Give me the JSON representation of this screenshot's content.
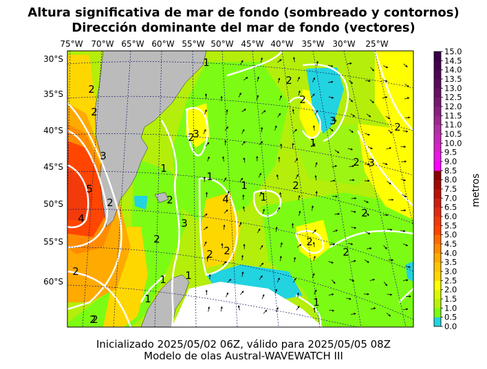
{
  "title_line1": "Altura significativa de mar de fondo (sombreado y contornos)",
  "title_line2": "Dirección dominante del mar de fondo (vectores)",
  "footer_line1": "Inicializado 2025/05/02 06Z, válido para 2025/05/05 08Z",
  "footer_line2": "Modelo de olas Austral-WAVEWATCH III",
  "lon_labels": [
    "75°W",
    "70°W",
    "65°W",
    "60°W",
    "55°W",
    "50°W",
    "45°W",
    "40°W",
    "35°W",
    "30°W",
    "25°W"
  ],
  "lat_labels": [
    "30°S",
    "35°S",
    "40°S",
    "45°S",
    "50°S",
    "55°S",
    "60°S"
  ],
  "colorbar": {
    "title": "metros",
    "ticks": [
      "0.0",
      "0.5",
      "1.0",
      "1.5",
      "2.0",
      "2.5",
      "3.0",
      "3.5",
      "4.0",
      "4.5",
      "5.0",
      "5.5",
      "6.0",
      "6.5",
      "7.0",
      "7.5",
      "8.0",
      "8.5",
      "9.0",
      "9.5",
      "10.0",
      "10.5",
      "11.0",
      "11.5",
      "12.0",
      "12.5",
      "13.0",
      "13.5",
      "14.0",
      "14.5",
      "15.0"
    ],
    "colors": [
      "#22d3e0",
      "#7cfc14",
      "#b6f20a",
      "#d9fa00",
      "#ffff00",
      "#ffd700",
      "#ffc400",
      "#ffaa00",
      "#ff8c00",
      "#ff6a00",
      "#ff4500",
      "#f23a0a",
      "#e02b10",
      "#cc1f10",
      "#b81208",
      "#a00a05",
      "#8b0000",
      "#ff00ff",
      "#ec14e6",
      "#d820cc",
      "#c428b8",
      "#b030a4",
      "#9c2890",
      "#8a1f80",
      "#781870",
      "#661066",
      "#5a0a5e",
      "#4e0656",
      "#42024e",
      "#380048"
    ]
  },
  "contour_labels": [
    "1",
    "2",
    "2",
    "2",
    "2",
    "3",
    "2",
    "1",
    "2",
    "2",
    "2",
    "2",
    "1",
    "2",
    "5",
    "3",
    "2",
    "1",
    "1",
    "4",
    "3",
    "1",
    "2",
    "2",
    "3",
    "2",
    "3",
    "2",
    "2",
    "4",
    "2",
    "2",
    "2",
    "1",
    "1",
    "1",
    "1"
  ]
}
